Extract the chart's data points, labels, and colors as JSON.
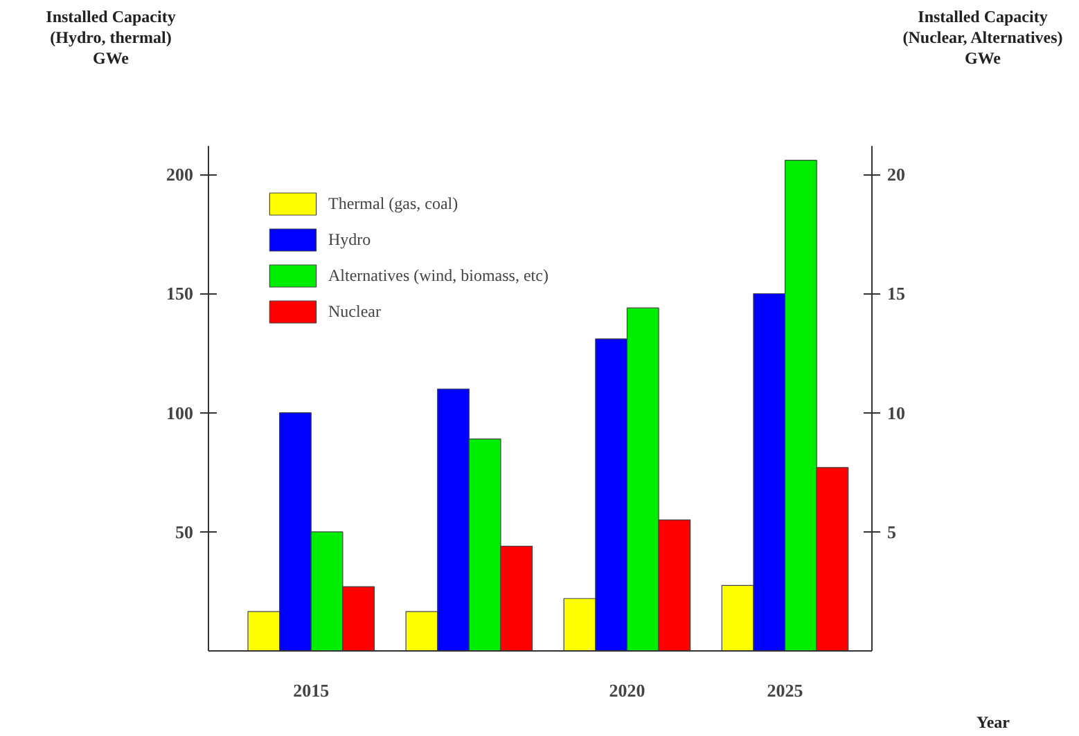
{
  "chart_data": {
    "type": "bar",
    "ylabel": "Installed Capacity\n(Hydro, thermal)\nGWe",
    "y2label": "Installed Capacity\n(Nuclear, Alternatives)\nGWe",
    "xlabel": "Year",
    "categories": [
      "2015",
      null,
      "2020",
      "2025"
    ],
    "series": [
      {
        "name": "Thermal (gas, coal)",
        "color": "#ffff00",
        "values": [
          16.5,
          16.5,
          22,
          27.5
        ]
      },
      {
        "name": "Hydro",
        "color": "#0000ff",
        "values": [
          100,
          110,
          131,
          150
        ]
      },
      {
        "name": "Alternatives (wind, biomass, etc)",
        "color": "#00ee00",
        "axis": "y2",
        "values": [
          5,
          8.9,
          14.4,
          20.6
        ]
      },
      {
        "name": "Nuclear",
        "color": "#ff0000",
        "axis": "y2",
        "values": [
          2.7,
          4.4,
          5.5,
          7.7
        ]
      }
    ],
    "ylim": [
      0,
      212
    ],
    "yticks": [
      50,
      100,
      150,
      200
    ],
    "y2lim": [
      0,
      21.2
    ],
    "y2ticks": [
      5,
      10,
      15,
      20
    ],
    "grid": false,
    "legend": "top left"
  }
}
